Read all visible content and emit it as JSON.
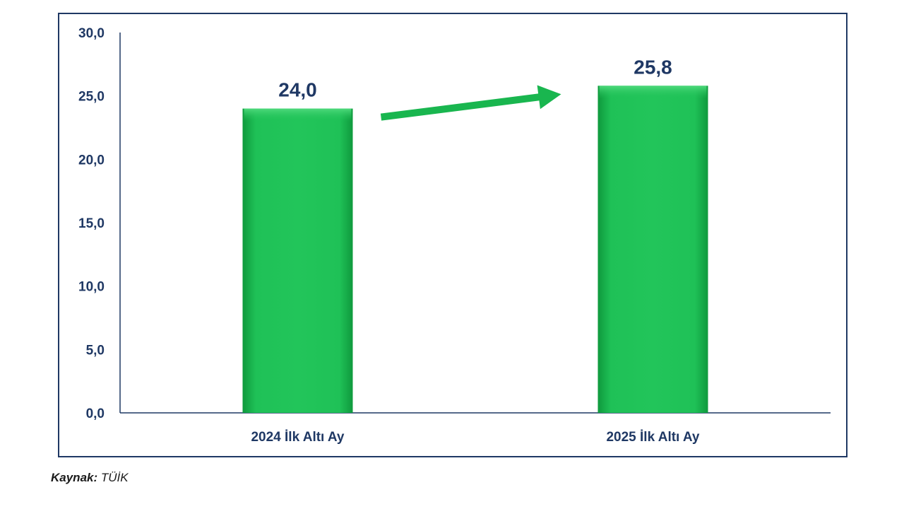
{
  "chart_data": {
    "type": "bar",
    "categories": [
      "2024 İlk Altı Ay",
      "2025 İlk Altı Ay"
    ],
    "values": [
      24.0,
      25.8
    ],
    "value_labels": [
      "24,0",
      "25,8"
    ],
    "title": "",
    "xlabel": "",
    "ylabel": "",
    "ylim": [
      0,
      30
    ],
    "yticks": [
      0,
      5,
      10,
      15,
      20,
      25,
      30
    ],
    "ytick_labels": [
      "0,0",
      "5,0",
      "10,0",
      "15,0",
      "20,0",
      "25,0",
      "30,0"
    ],
    "grid": false,
    "legend": "none",
    "bar_color": "#19b64f",
    "axis_text_color": "#1f3864",
    "annotation": "green arrow pointing up-right from the first bar toward the second bar"
  },
  "source": {
    "label": "Kaynak:",
    "value": "TÜİK"
  }
}
